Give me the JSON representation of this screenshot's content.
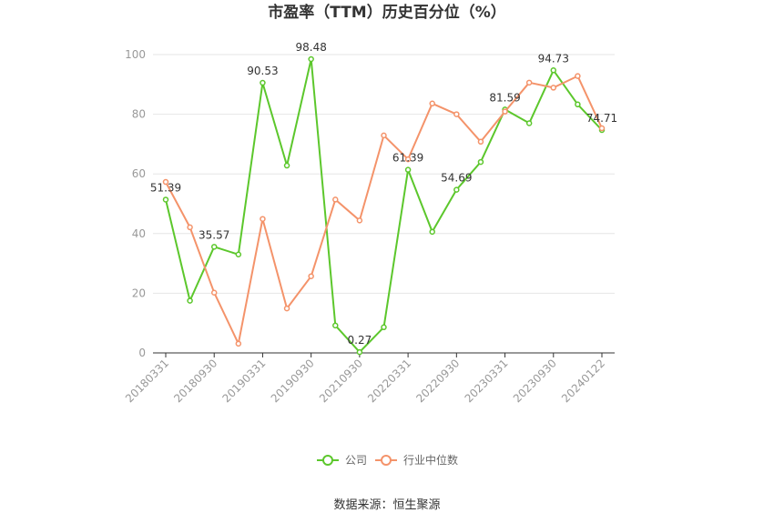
{
  "chart_data": {
    "type": "line",
    "title": "市盈率（TTM）历史百分位（%）",
    "xlabel": "",
    "ylabel": "",
    "ylim": [
      0,
      100
    ],
    "yticks": [
      0,
      20,
      40,
      60,
      80,
      100
    ],
    "grid": true,
    "legend_position": "bottom",
    "x": [
      "20180331",
      "20180630",
      "20180930",
      "20181231",
      "20190331",
      "20190630",
      "20190930",
      "20191231",
      "20210930",
      "20211231",
      "20220331",
      "20220630",
      "20220930",
      "20221231",
      "20230331",
      "20230630",
      "20230930",
      "20231231",
      "20240122"
    ],
    "x_tick_labels": [
      "20180331",
      "20180930",
      "20190331",
      "20190930",
      "20210930",
      "20220331",
      "20220930",
      "20230331",
      "20230930",
      "20240122"
    ],
    "series": [
      {
        "name": "公司",
        "color": "#5cc72c",
        "values": [
          51.39,
          17.5,
          35.57,
          33.0,
          90.53,
          62.8,
          98.48,
          9.2,
          0.27,
          8.6,
          61.39,
          40.6,
          54.69,
          64.0,
          81.59,
          77.0,
          94.73,
          83.3,
          74.71
        ],
        "labels": {
          "0": "51.39",
          "2": "35.57",
          "4": "90.53",
          "6": "98.48",
          "8": "0.27",
          "10": "61.39",
          "12": "54.69",
          "14": "81.59",
          "16": "94.73",
          "18": "74.71"
        }
      },
      {
        "name": "行业中位数",
        "color": "#f4936a",
        "values": [
          57.3,
          42.1,
          20.2,
          3.1,
          44.9,
          14.9,
          25.7,
          51.4,
          44.4,
          72.9,
          64.9,
          83.6,
          80.0,
          70.8,
          80.9,
          90.6,
          88.9,
          92.8,
          75.3
        ]
      }
    ]
  },
  "footer": {
    "source": "数据来源：恒生聚源"
  }
}
